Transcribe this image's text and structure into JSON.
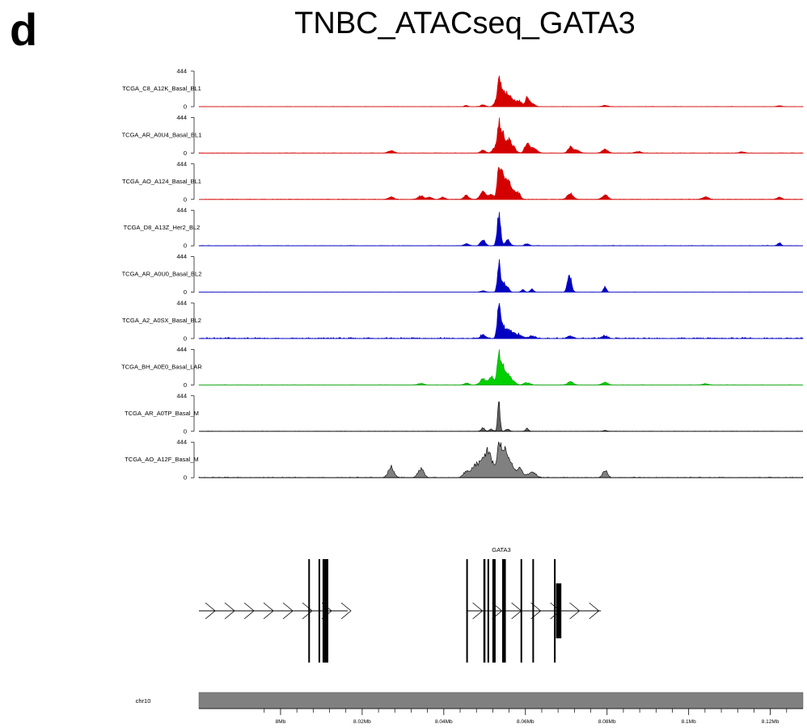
{
  "figure": {
    "panel_letter": "d",
    "title": "TNBC_ATACseq_GATA3"
  },
  "chart_data": {
    "type": "area",
    "ylim": [
      0,
      444
    ],
    "y_tick_labels": [
      "0",
      "444"
    ],
    "genomic_range_mb": [
      7.98,
      8.128
    ],
    "chromosome": "chr10",
    "x_axis_ticks": [
      {
        "value": 8.0,
        "label": "8Mb"
      },
      {
        "value": 8.02,
        "label": "8.02Mb"
      },
      {
        "value": 8.04,
        "label": "8.04Mb"
      },
      {
        "value": 8.06,
        "label": "8.06Mb"
      },
      {
        "value": 8.08,
        "label": "8.08Mb"
      },
      {
        "value": 8.1,
        "label": "8.1Mb"
      },
      {
        "value": 8.12,
        "label": "8.12Mb"
      }
    ],
    "x_minor_ticks": [
      7.996,
      8.004,
      8.008,
      8.012,
      8.016,
      8.024,
      8.028,
      8.032,
      8.036,
      8.044,
      8.048,
      8.052,
      8.056,
      8.064,
      8.068,
      8.072,
      8.076,
      8.084,
      8.088,
      8.092,
      8.096,
      8.104,
      8.108,
      8.112,
      8.116,
      8.124
    ],
    "tracks": [
      {
        "name": "TCGA_C8_A12K_Basal_BL1",
        "color": "#d40000",
        "fill": "#d40000",
        "noise": 0.01,
        "peaks": [
          [
            8.0455,
            0.04,
            0.06
          ],
          [
            8.0496,
            0.06,
            0.08
          ],
          [
            8.0524,
            0.08,
            0.06
          ],
          [
            8.0535,
            1.0,
            0.06
          ],
          [
            8.0545,
            0.5,
            0.06
          ],
          [
            8.0556,
            0.4,
            0.08
          ],
          [
            8.0568,
            0.22,
            0.1
          ],
          [
            8.0585,
            0.18,
            0.1
          ],
          [
            8.0604,
            0.28,
            0.06
          ],
          [
            8.0615,
            0.12,
            0.1
          ],
          [
            8.0795,
            0.04,
            0.1
          ],
          [
            8.1222,
            0.03,
            0.08
          ]
        ]
      },
      {
        "name": "TCGA_AR_A0U4_Basal_BL1",
        "color": "#d40000",
        "fill": "#d40000",
        "noise": 0.01,
        "peaks": [
          [
            8.0271,
            0.08,
            0.1
          ],
          [
            8.0496,
            0.1,
            0.08
          ],
          [
            8.0524,
            0.15,
            0.08
          ],
          [
            8.0535,
            1.0,
            0.06
          ],
          [
            8.0545,
            0.55,
            0.06
          ],
          [
            8.0556,
            0.4,
            0.08
          ],
          [
            8.0568,
            0.25,
            0.1
          ],
          [
            8.0604,
            0.35,
            0.08
          ],
          [
            8.062,
            0.15,
            0.12
          ],
          [
            8.071,
            0.2,
            0.08
          ],
          [
            8.0725,
            0.1,
            0.1
          ],
          [
            8.0795,
            0.12,
            0.1
          ],
          [
            8.0876,
            0.05,
            0.1
          ],
          [
            8.1131,
            0.04,
            0.1
          ]
        ]
      },
      {
        "name": "TCGA_AO_A124_Basal_BL1",
        "color": "#d40000",
        "fill": "#d40000",
        "noise": 0.012,
        "peaks": [
          [
            8.0271,
            0.08,
            0.1
          ],
          [
            8.0344,
            0.12,
            0.1
          ],
          [
            8.0366,
            0.08,
            0.08
          ],
          [
            8.0398,
            0.08,
            0.08
          ],
          [
            8.0455,
            0.14,
            0.08
          ],
          [
            8.0496,
            0.24,
            0.1
          ],
          [
            8.0516,
            0.16,
            0.08
          ],
          [
            8.0535,
            1.0,
            0.06
          ],
          [
            8.0545,
            0.75,
            0.06
          ],
          [
            8.0556,
            0.55,
            0.08
          ],
          [
            8.0568,
            0.3,
            0.1
          ],
          [
            8.0582,
            0.2,
            0.08
          ],
          [
            8.071,
            0.2,
            0.1
          ],
          [
            8.0795,
            0.14,
            0.1
          ],
          [
            8.1041,
            0.08,
            0.1
          ],
          [
            8.1222,
            0.08,
            0.08
          ]
        ]
      },
      {
        "name": "TCGA_D8_A13Z_Her2_BL2",
        "color": "#0000c0",
        "fill": "#0000c0",
        "noise": 0.015,
        "peaks": [
          [
            8.0455,
            0.07,
            0.08
          ],
          [
            8.0496,
            0.18,
            0.08
          ],
          [
            8.0535,
            1.0,
            0.06
          ],
          [
            8.0556,
            0.2,
            0.08
          ],
          [
            8.0604,
            0.06,
            0.08
          ],
          [
            8.1222,
            0.1,
            0.06
          ]
        ]
      },
      {
        "name": "TCGA_AR_A0U0_Basal_BL2",
        "color": "#0000c0",
        "fill": "#0000c0",
        "noise": 0.006,
        "peaks": [
          [
            8.0496,
            0.05,
            0.08
          ],
          [
            8.0535,
            1.0,
            0.05
          ],
          [
            8.0545,
            0.35,
            0.06
          ],
          [
            8.0556,
            0.2,
            0.06
          ],
          [
            8.0594,
            0.08,
            0.06
          ],
          [
            8.0616,
            0.1,
            0.06
          ],
          [
            8.071,
            0.42,
            0.06
          ],
          [
            8.0704,
            0.3,
            0.05
          ],
          [
            8.0795,
            0.2,
            0.05
          ]
        ]
      },
      {
        "name": "TCGA_A2_A0SX_Basal_BL2",
        "color": "#0000c0",
        "fill": "#0000c0",
        "noise": 0.04,
        "peaks": [
          [
            8.0496,
            0.12,
            0.08
          ],
          [
            8.0535,
            1.0,
            0.06
          ],
          [
            8.0545,
            0.4,
            0.06
          ],
          [
            8.0556,
            0.25,
            0.08
          ],
          [
            8.0568,
            0.18,
            0.1
          ],
          [
            8.0585,
            0.12,
            0.1
          ],
          [
            8.0616,
            0.08,
            0.1
          ],
          [
            8.071,
            0.08,
            0.1
          ],
          [
            8.0795,
            0.08,
            0.1
          ]
        ]
      },
      {
        "name": "TCGA_BH_A0E0_Basal_LAR",
        "color": "#00a000",
        "fill": "#00d000",
        "noise": 0.008,
        "peaks": [
          [
            8.0344,
            0.05,
            0.1
          ],
          [
            8.0455,
            0.06,
            0.08
          ],
          [
            8.0496,
            0.2,
            0.1
          ],
          [
            8.0516,
            0.3,
            0.08
          ],
          [
            8.0535,
            1.0,
            0.06
          ],
          [
            8.0545,
            0.6,
            0.06
          ],
          [
            8.0556,
            0.35,
            0.08
          ],
          [
            8.0568,
            0.15,
            0.1
          ],
          [
            8.0604,
            0.08,
            0.1
          ],
          [
            8.071,
            0.1,
            0.1
          ],
          [
            8.0795,
            0.08,
            0.1
          ],
          [
            8.1041,
            0.04,
            0.1
          ]
        ]
      },
      {
        "name": "TCGA_AR_A0TP_Basal_M",
        "color": "#000000",
        "fill": "#606060",
        "noise": 0.004,
        "peaks": [
          [
            8.0496,
            0.12,
            0.06
          ],
          [
            8.0516,
            0.08,
            0.06
          ],
          [
            8.0535,
            1.0,
            0.04
          ],
          [
            8.0556,
            0.08,
            0.06
          ],
          [
            8.0604,
            0.1,
            0.05
          ],
          [
            8.0795,
            0.03,
            0.06
          ]
        ]
      },
      {
        "name": "TCGA_AO_A12F_Basal_M",
        "color": "#000000",
        "fill": "#808080",
        "noise": 0.02,
        "peaks": [
          [
            8.0271,
            0.35,
            0.1
          ],
          [
            8.0344,
            0.3,
            0.1
          ],
          [
            8.0455,
            0.2,
            0.1
          ],
          [
            8.0476,
            0.4,
            0.12
          ],
          [
            8.0496,
            0.6,
            0.12
          ],
          [
            8.0512,
            0.75,
            0.12
          ],
          [
            8.0535,
            1.0,
            0.08
          ],
          [
            8.0548,
            0.8,
            0.1
          ],
          [
            8.0562,
            0.5,
            0.1
          ],
          [
            8.0585,
            0.3,
            0.12
          ],
          [
            8.0616,
            0.2,
            0.12
          ],
          [
            8.0795,
            0.25,
            0.08
          ]
        ]
      }
    ],
    "gene": {
      "label": "GATA3",
      "transcripts": [
        {
          "start": 7.98,
          "end": 8.0165,
          "strand": "+",
          "exons": [
            [
              8.0068,
              8.0071
            ],
            [
              8.0093,
              8.0096
            ],
            [
              8.0103,
              8.0106
            ],
            [
              8.0107,
              8.0117
            ]
          ]
        },
        {
          "start": 8.0455,
          "end": 8.0785,
          "strand": "+",
          "exons": [
            [
              8.0455,
              8.0458
            ],
            [
              8.0497,
              8.0502
            ],
            [
              8.0507,
              8.0511
            ],
            [
              8.0519,
              8.0527
            ],
            [
              8.0543,
              8.0552
            ],
            [
              8.0588,
              8.0591
            ],
            [
              8.0617,
              8.062
            ],
            [
              8.067,
              8.0673
            ],
            [
              8.0675,
              8.0688
            ]
          ]
        }
      ]
    }
  }
}
